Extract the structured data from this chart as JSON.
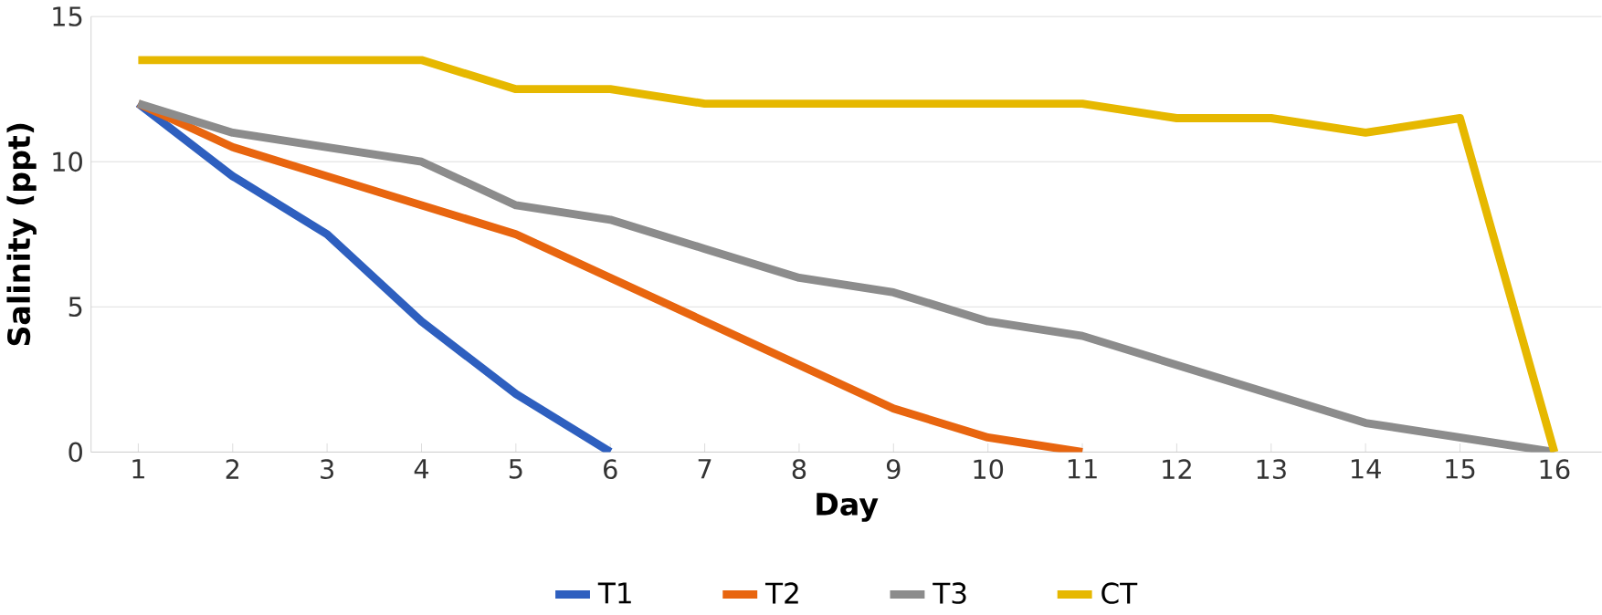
{
  "chart_data": {
    "type": "line",
    "xlabel": "Day",
    "ylabel": "Salinity (ppt)",
    "categories": [
      "1",
      "2",
      "3",
      "4",
      "5",
      "6",
      "7",
      "8",
      "9",
      "10",
      "11",
      "12",
      "13",
      "14",
      "15",
      "16"
    ],
    "series": [
      {
        "name": "T1",
        "color": "#2e5fbf",
        "values": [
          12,
          9.5,
          7.5,
          4.5,
          2,
          0,
          null,
          null,
          null,
          null,
          null,
          null,
          null,
          null,
          null,
          null
        ]
      },
      {
        "name": "T2",
        "color": "#e8650f",
        "values": [
          12,
          10.5,
          9.5,
          8.5,
          7.5,
          6,
          4.5,
          3,
          1.5,
          0.5,
          0,
          null,
          null,
          null,
          null,
          null
        ]
      },
      {
        "name": "T3",
        "color": "#8c8c8c",
        "values": [
          12,
          11,
          10.5,
          10,
          8.5,
          8,
          7,
          6,
          5.5,
          4.5,
          4,
          3,
          2,
          1,
          0.5,
          0
        ]
      },
      {
        "name": "CT",
        "color": "#e6b800",
        "values": [
          13.5,
          13.5,
          13.5,
          13.5,
          12.5,
          12.5,
          12,
          12,
          12,
          12,
          12,
          11.5,
          11.5,
          11,
          11.5,
          0
        ]
      }
    ],
    "ylim": [
      0,
      15
    ],
    "yticks": [
      0,
      5,
      10,
      15
    ],
    "grid": "y",
    "legend": "bottom",
    "marker": "none",
    "line_style": "solid"
  }
}
